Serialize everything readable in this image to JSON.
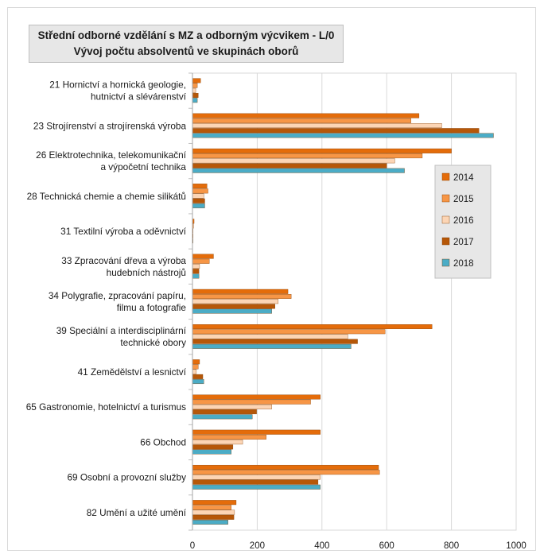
{
  "chart_data": {
    "type": "bar",
    "orientation": "horizontal",
    "title": "Střední odborné vzdělání s MZ a odborným výcvikem - L/0",
    "subtitle": "Vývoj počtu absolventů ve skupinách oborů",
    "xlim": [
      0,
      1000
    ],
    "x_ticks": [
      "0",
      "200",
      "400",
      "600",
      "800",
      "1000"
    ],
    "grid": "vertical",
    "legend_position": "right",
    "categories": [
      [
        "21 Hornictví a hornická geologie,",
        "hutnictví a slévárenství"
      ],
      [
        "23 Strojírenství a strojírenská výroba"
      ],
      [
        "26 Elektrotechnika, telekomunikační",
        "a výpočetní technika"
      ],
      [
        "28 Technická chemie a chemie silikátů"
      ],
      [
        "31 Textilní výroba a oděvnictví"
      ],
      [
        "33 Zpracování dřeva a výroba",
        "hudebních nástrojů"
      ],
      [
        "34 Polygrafie, zpracování papíru,",
        "filmu a fotografie"
      ],
      [
        "39 Speciální a interdisciplinární",
        "technické obory"
      ],
      [
        "41 Zemědělství a lesnictví"
      ],
      [
        "65 Gastronomie, hotelnictví a turismus"
      ],
      [
        "66 Obchod"
      ],
      [
        "69 Osobní a provozní služby"
      ],
      [
        "82 Umění a užité umění"
      ]
    ],
    "series": [
      {
        "name": "2014",
        "color": "#e46c0a",
        "values": [
          25,
          700,
          800,
          45,
          5,
          65,
          295,
          740,
          22,
          395,
          395,
          575,
          135
        ]
      },
      {
        "name": "2015",
        "color": "#f79646",
        "values": [
          15,
          675,
          710,
          48,
          3,
          52,
          305,
          595,
          18,
          365,
          228,
          578,
          120
        ]
      },
      {
        "name": "2016",
        "color": "#fcd5b5",
        "values": [
          10,
          770,
          625,
          35,
          2,
          22,
          265,
          480,
          12,
          245,
          155,
          395,
          130
        ]
      },
      {
        "name": "2017",
        "color": "#b65708",
        "values": [
          18,
          885,
          600,
          38,
          2,
          20,
          255,
          510,
          32,
          198,
          125,
          388,
          128
        ]
      },
      {
        "name": "2018",
        "color": "#4bacc6",
        "values": [
          15,
          930,
          655,
          38,
          2,
          20,
          245,
          490,
          35,
          185,
          120,
          395,
          110
        ]
      }
    ]
  }
}
